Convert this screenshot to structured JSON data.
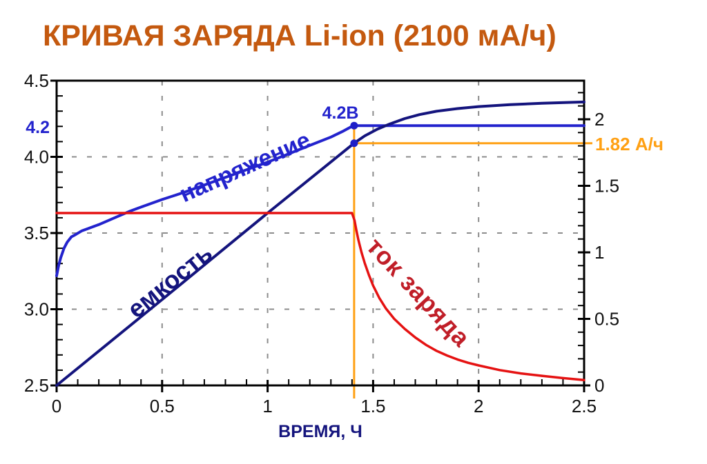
{
  "title": {
    "text": "КРИВАЯ ЗАРЯДА Li-ion (2100 мА/ч)",
    "color": "#c4590f"
  },
  "chart_data": {
    "type": "line",
    "title": "КРИВАЯ ЗАРЯДА Li-ion (2100 мА/ч)",
    "xlabel": "ВРЕМЯ, Ч",
    "x_axis": {
      "min": 0,
      "max": 2.5,
      "minor_step": 0.1,
      "major_ticks": [
        0,
        0.5,
        1,
        1.5,
        2,
        2.5
      ],
      "tick_labels": [
        "0",
        "0.5",
        "1",
        "1.5",
        "2",
        "2.5"
      ]
    },
    "y_left_axis": {
      "units": "В",
      "min": 2.5,
      "max": 4.5,
      "minor_step": 0.1,
      "major_ticks": [
        2.5,
        3.0,
        3.5,
        4.0,
        4.5
      ],
      "tick_labels": [
        "2.5",
        "3.0",
        "3.5",
        "4.0",
        "4.5"
      ]
    },
    "y_right_axis": {
      "units": "А/ч",
      "min": 0,
      "max": 2.29,
      "minor_step": 0.1,
      "major_ticks": [
        0,
        0.5,
        1,
        1.5,
        2
      ],
      "tick_labels": [
        "0",
        "0.5",
        "1",
        "1.5",
        "2"
      ]
    },
    "grid": {
      "on": true,
      "vertical_x": [
        0.5,
        1,
        1.5,
        2
      ],
      "horizontal_y_left": [
        3.0,
        3.5,
        4.0
      ],
      "color": "#8c8c8c"
    },
    "series": [
      {
        "name": "напряжение",
        "axis": "left",
        "color": "#2323cd",
        "width": 4,
        "points": [
          [
            0,
            3.22
          ],
          [
            0.01,
            3.29
          ],
          [
            0.02,
            3.34
          ],
          [
            0.035,
            3.4
          ],
          [
            0.05,
            3.44
          ],
          [
            0.07,
            3.475
          ],
          [
            0.09,
            3.49
          ],
          [
            0.12,
            3.515
          ],
          [
            0.16,
            3.535
          ],
          [
            0.2,
            3.555
          ],
          [
            0.25,
            3.585
          ],
          [
            0.3,
            3.615
          ],
          [
            0.35,
            3.645
          ],
          [
            0.4,
            3.67
          ],
          [
            0.45,
            3.695
          ],
          [
            0.5,
            3.72
          ],
          [
            0.6,
            3.765
          ],
          [
            0.7,
            3.815
          ],
          [
            0.8,
            3.865
          ],
          [
            0.9,
            3.915
          ],
          [
            1.0,
            3.965
          ],
          [
            1.1,
            4.02
          ],
          [
            1.2,
            4.075
          ],
          [
            1.3,
            4.13
          ],
          [
            1.36,
            4.17
          ],
          [
            1.4,
            4.2
          ],
          [
            1.41,
            4.205
          ],
          [
            1.45,
            4.205
          ],
          [
            2.5,
            4.205
          ]
        ]
      },
      {
        "name": "емкость",
        "axis": "right",
        "color": "#14147d",
        "width": 4,
        "points": [
          [
            0,
            0
          ],
          [
            0.5,
            0.645
          ],
          [
            1.0,
            1.295
          ],
          [
            1.41,
            1.82
          ],
          [
            1.46,
            1.875
          ],
          [
            1.52,
            1.925
          ],
          [
            1.58,
            1.965
          ],
          [
            1.65,
            2.005
          ],
          [
            1.72,
            2.035
          ],
          [
            1.8,
            2.06
          ],
          [
            1.9,
            2.08
          ],
          [
            2.0,
            2.095
          ],
          [
            2.15,
            2.11
          ],
          [
            2.3,
            2.12
          ],
          [
            2.5,
            2.13
          ]
        ]
      },
      {
        "name": "ток заряда",
        "axis": "right",
        "color": "#e51212",
        "width": 3.5,
        "points": [
          [
            0,
            1.295
          ],
          [
            1.4,
            1.295
          ],
          [
            1.412,
            1.24
          ],
          [
            1.42,
            1.17
          ],
          [
            1.43,
            1.095
          ],
          [
            1.445,
            1.0
          ],
          [
            1.46,
            0.92
          ],
          [
            1.48,
            0.83
          ],
          [
            1.5,
            0.75
          ],
          [
            1.53,
            0.655
          ],
          [
            1.56,
            0.58
          ],
          [
            1.6,
            0.5
          ],
          [
            1.65,
            0.425
          ],
          [
            1.7,
            0.36
          ],
          [
            1.75,
            0.305
          ],
          [
            1.8,
            0.26
          ],
          [
            1.85,
            0.225
          ],
          [
            1.9,
            0.195
          ],
          [
            1.95,
            0.17
          ],
          [
            2.0,
            0.15
          ],
          [
            2.1,
            0.115
          ],
          [
            2.2,
            0.09
          ],
          [
            2.3,
            0.072
          ],
          [
            2.4,
            0.055
          ],
          [
            2.5,
            0.04
          ]
        ]
      }
    ],
    "annotations": {
      "knee_point": {
        "t": 1.41,
        "voltage": 4.205,
        "label": "4.2В",
        "dot_color": "#1e1ec8"
      },
      "capacity_point": {
        "t": 1.41,
        "capacity": 1.82,
        "label": "1.82 А/ч",
        "dot_color": "#1e1ec8"
      },
      "left_axis_callout": {
        "value": 4.2,
        "label": "4.2",
        "color": "#2323cd"
      },
      "guide_line_color": "#ffa013"
    },
    "legend": "none",
    "curve_label_colors": {
      "voltage": "#2323cd",
      "capacity": "#14147d",
      "current": "#c01e28"
    },
    "xlabel_color": "#14147d",
    "tick_label_color": "#111111"
  }
}
